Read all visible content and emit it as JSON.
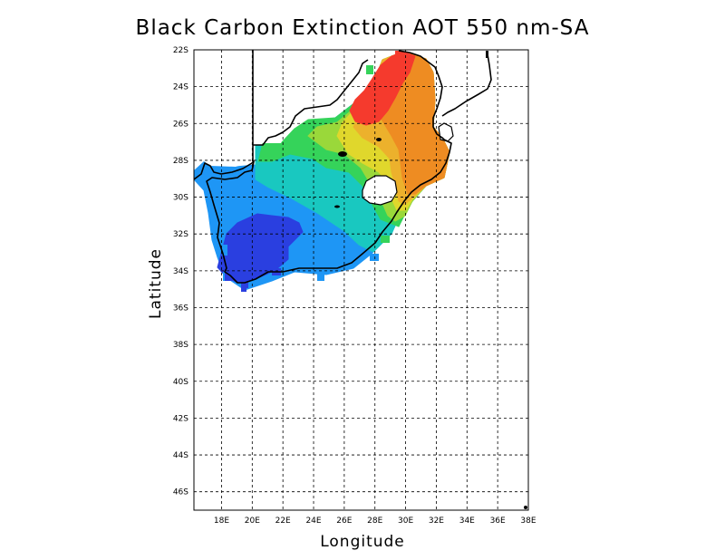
{
  "chart_data": {
    "type": "heatmap",
    "title": "Black Carbon Extinction AOT 550 nm-SA",
    "xlabel": "Longitude",
    "ylabel": "Latitude",
    "x_ticks": [
      "18E",
      "20E",
      "22E",
      "24E",
      "26E",
      "28E",
      "30E",
      "32E",
      "34E",
      "36E",
      "38E"
    ],
    "y_ticks": [
      "22S",
      "24S",
      "26S",
      "28S",
      "30S",
      "32S",
      "34S",
      "36S",
      "38S",
      "40S",
      "42S",
      "44S",
      "46S"
    ],
    "xlim": [
      16.2,
      38.0
    ],
    "ylim": [
      -47.0,
      -22.0
    ],
    "grid": true,
    "colors": {
      "darkblue": "#2a3fe0",
      "blue": "#1e96f5",
      "teal": "#19c8c0",
      "green": "#35d35a",
      "lightgreen": "#9ad83a",
      "yellow": "#e0d72c",
      "gold": "#ecb12c",
      "orange": "#ee8c22",
      "red": "#f53a2d"
    }
  }
}
